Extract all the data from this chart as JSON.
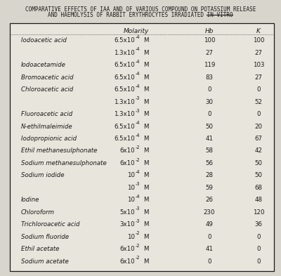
{
  "title_line1": "COMPARATIVE EFFECTS OF IAA AND OF VARIOUS COMPOUND ON POTASSIUM RELEASE",
  "title_line2_prefix": "AND HAEMOLYSIS OF RABBIT ERYTHROCYTES IRRADIATED ",
  "title_line2_underline": "IN VITRO",
  "col_headers": [
    "Molarity",
    "Hb",
    "K"
  ],
  "rows": [
    {
      "compound": "Iodoacetic acid",
      "mol_base": "6.5x10",
      "mol_exp": "-4",
      "hb": "100",
      "k": "100"
    },
    {
      "compound": "",
      "mol_base": "1.3x10",
      "mol_exp": "-4",
      "hb": "27",
      "k": "27"
    },
    {
      "compound": "Iodoacetamide",
      "mol_base": "6.5x10",
      "mol_exp": "-4",
      "hb": "119",
      "k": "103"
    },
    {
      "compound": "Bromoacetic acid",
      "mol_base": "6.5x10",
      "mol_exp": "-4",
      "hb": "83",
      "k": "27"
    },
    {
      "compound": "Chloroacetic acid",
      "mol_base": "6.5x10",
      "mol_exp": "-4",
      "hb": "0",
      "k": "0"
    },
    {
      "compound": "",
      "mol_base": "1.3x10",
      "mol_exp": "-3",
      "hb": "30",
      "k": "52"
    },
    {
      "compound": "Fluoroacetic acid",
      "mol_base": "1.3x10",
      "mol_exp": "-3",
      "hb": "0",
      "k": "0"
    },
    {
      "compound": "N-ethilmaleimide",
      "mol_base": "6.5x10",
      "mol_exp": "-4",
      "hb": "50",
      "k": "20"
    },
    {
      "compound": "Iodopropionic acid",
      "mol_base": "6.5x10",
      "mol_exp": "-4",
      "hb": "41",
      "k": "67"
    },
    {
      "compound": "Ethil methanesulphonate",
      "mol_base": "6x10",
      "mol_exp": "-2",
      "hb": "58",
      "k": "42"
    },
    {
      "compound": "Sodium methanesulphonate",
      "mol_base": "6x10",
      "mol_exp": "-2",
      "hb": "56",
      "k": "50"
    },
    {
      "compound": "Sodium iodide",
      "mol_base": "10",
      "mol_exp": "-4",
      "hb": "28",
      "k": "50"
    },
    {
      "compound": "",
      "mol_base": "10",
      "mol_exp": "-3",
      "hb": "59",
      "k": "68"
    },
    {
      "compound": "Iodine",
      "mol_base": "10",
      "mol_exp": "-4",
      "hb": "26",
      "k": "48"
    },
    {
      "compound": "Chloroform",
      "mol_base": "5x10",
      "mol_exp": "-3",
      "hb": "230",
      "k": "120"
    },
    {
      "compound": "Trichloroacetic acid",
      "mol_base": "3x10",
      "mol_exp": "-3",
      "hb": "49",
      "k": "36"
    },
    {
      "compound": "Sodium fluoride",
      "mol_base": "10",
      "mol_exp": "-2",
      "hb": "0",
      "k": "0"
    },
    {
      "compound": "Ethil acetate",
      "mol_base": "6x10",
      "mol_exp": "-2",
      "hb": "41",
      "k": "0"
    },
    {
      "compound": "Sodium acetate",
      "mol_base": "6x10",
      "mol_exp": "-2",
      "hb": "0",
      "k": "0"
    }
  ],
  "bg_color": "#d8d5cc",
  "text_color": "#1a1a1a",
  "table_bg": "#e8e5dc",
  "font_size_title": 5.5,
  "font_size_header": 6.5,
  "font_size_body": 6.2,
  "font_size_mol_base": 6.2,
  "font_size_mol_exp": 4.8
}
